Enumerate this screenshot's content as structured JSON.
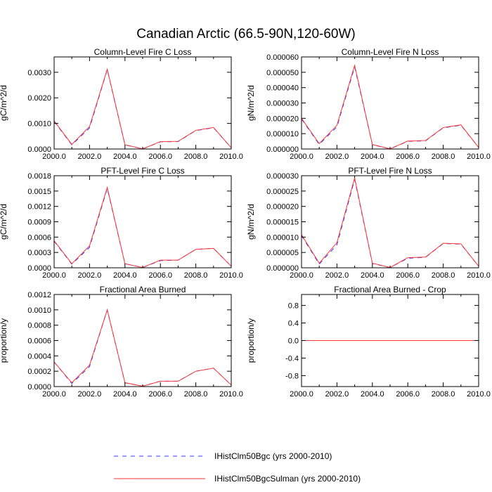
{
  "figure_title": "Canadian Arctic (66.5-90N,120-60W)",
  "colors": {
    "case1": "#3333ff",
    "case2": "#ff3333",
    "axis": "#000000"
  },
  "legend": [
    {
      "label": "IHistClm50Bgc (yrs 2000-2010)",
      "style": "dashed"
    },
    {
      "label": "IHistClm50BgcSulman (yrs 2000-2010)",
      "style": "solid"
    }
  ],
  "chart_data": [
    {
      "type": "line",
      "title": "Column-Level Fire C Loss",
      "ylabel": "gC/m^2/d",
      "xlim": [
        2000,
        2010
      ],
      "ylim": [
        0,
        0.0036
      ],
      "xticks": [
        "2000.0",
        "2002.0",
        "2004.0",
        "2006.0",
        "2008.0",
        "2010.0"
      ],
      "yticks": [
        {
          "value": 0,
          "label": "0.0000"
        },
        {
          "value": 0.001,
          "label": "0.0010"
        },
        {
          "value": 0.002,
          "label": "0.0020"
        },
        {
          "value": 0.003,
          "label": "0.0030"
        }
      ],
      "x": [
        2000,
        2001,
        2002,
        2003,
        2004,
        2005,
        2006,
        2007,
        2008,
        2009,
        2010
      ],
      "series": [
        {
          "name": "IHistClm50Bgc (yrs 2000-2010)",
          "values": [
            0.00108,
            0.00016,
            0.00082,
            0.0031,
            0.00016,
            5e-06,
            0.00028,
            0.00029,
            0.00072,
            0.00083,
            5e-05
          ]
        },
        {
          "name": "IHistClm50BgcSulman (yrs 2000-2010)",
          "values": [
            0.0011,
            0.00018,
            0.00088,
            0.00312,
            0.00017,
            5e-06,
            0.00029,
            0.0003,
            0.00073,
            0.00084,
            5e-05
          ]
        }
      ]
    },
    {
      "type": "line",
      "title": "Column-Level Fire N Loss",
      "ylabel": "gN/m^2/d",
      "xlim": [
        2000,
        2010
      ],
      "ylim": [
        0,
        6e-05
      ],
      "xticks": [
        "2000.0",
        "2002.0",
        "2004.0",
        "2006.0",
        "2008.0",
        "2010.0"
      ],
      "yticks": [
        {
          "value": 0,
          "label": "0.000000"
        },
        {
          "value": 1e-05,
          "label": "0.000010"
        },
        {
          "value": 2e-05,
          "label": "0.000020"
        },
        {
          "value": 3e-05,
          "label": "0.000030"
        },
        {
          "value": 4e-05,
          "label": "0.000040"
        },
        {
          "value": 5e-05,
          "label": "0.000050"
        },
        {
          "value": 6e-05,
          "label": "0.000060"
        }
      ],
      "x": [
        2000,
        2001,
        2002,
        2003,
        2004,
        2005,
        2006,
        2007,
        2008,
        2009,
        2010
      ],
      "series": [
        {
          "name": "IHistClm50Bgc (yrs 2000-2010)",
          "values": [
            1.95e-05,
            3e-06,
            1.45e-05,
            5.35e-05,
            2.8e-06,
            1e-07,
            5e-06,
            5.3e-06,
            1.38e-05,
            1.55e-05,
            1e-06
          ]
        },
        {
          "name": "IHistClm50BgcSulman (yrs 2000-2010)",
          "values": [
            2e-05,
            3.5e-06,
            1.55e-05,
            5.45e-05,
            2.9e-06,
            1e-07,
            5.2e-06,
            5.5e-06,
            1.4e-05,
            1.57e-05,
            1e-06
          ]
        }
      ]
    },
    {
      "type": "line",
      "title": "PFT-Level Fire C Loss",
      "ylabel": "gC/m^2/d",
      "xlim": [
        2000,
        2010
      ],
      "ylim": [
        0,
        0.0018
      ],
      "xticks": [
        "2000.0",
        "2002.0",
        "2004.0",
        "2006.0",
        "2008.0",
        "2010.0"
      ],
      "yticks": [
        {
          "value": 0,
          "label": "0.0000"
        },
        {
          "value": 0.0003,
          "label": "0.0003"
        },
        {
          "value": 0.0006,
          "label": "0.0006"
        },
        {
          "value": 0.0009,
          "label": "0.0009"
        },
        {
          "value": 0.0012,
          "label": "0.0012"
        },
        {
          "value": 0.0015,
          "label": "0.0015"
        },
        {
          "value": 0.0018,
          "label": "0.0018"
        }
      ],
      "x": [
        2000,
        2001,
        2002,
        2003,
        2004,
        2005,
        2006,
        2007,
        2008,
        2009,
        2010
      ],
      "series": [
        {
          "name": "IHistClm50Bgc (yrs 2000-2010)",
          "values": [
            0.00052,
            7e-05,
            0.0004,
            0.00155,
            8e-05,
            5e-06,
            0.00014,
            0.00015,
            0.00036,
            0.00038,
            3e-05
          ]
        },
        {
          "name": "IHistClm50BgcSulman (yrs 2000-2010)",
          "values": [
            0.00053,
            8e-05,
            0.00043,
            0.00157,
            8e-05,
            5e-06,
            0.00015,
            0.00015,
            0.00036,
            0.00038,
            3e-05
          ]
        }
      ]
    },
    {
      "type": "line",
      "title": "PFT-Level Fire N Loss",
      "ylabel": "gN/m^2/d",
      "xlim": [
        2000,
        2010
      ],
      "ylim": [
        0,
        3e-05
      ],
      "xticks": [
        "2000.0",
        "2002.0",
        "2004.0",
        "2006.0",
        "2008.0",
        "2010.0"
      ],
      "yticks": [
        {
          "value": 0,
          "label": "0.000000"
        },
        {
          "value": 5e-06,
          "label": "0.000005"
        },
        {
          "value": 1e-05,
          "label": "0.000010"
        },
        {
          "value": 1.5e-05,
          "label": "0.000015"
        },
        {
          "value": 2e-05,
          "label": "0.000020"
        },
        {
          "value": 2.5e-05,
          "label": "0.000025"
        },
        {
          "value": 3e-05,
          "label": "0.000030"
        }
      ],
      "x": [
        2000,
        2001,
        2002,
        2003,
        2004,
        2005,
        2006,
        2007,
        2008,
        2009,
        2010
      ],
      "series": [
        {
          "name": "IHistClm50Bgc (yrs 2000-2010)",
          "values": [
            1.05e-05,
            1.2e-06,
            7.5e-06,
            2.88e-05,
            1.4e-06,
            1e-07,
            3.1e-06,
            3.4e-06,
            7.9e-06,
            7.7e-06,
            5e-07
          ]
        },
        {
          "name": "IHistClm50BgcSulman (yrs 2000-2010)",
          "values": [
            1.08e-05,
            1.5e-06,
            8.2e-06,
            2.93e-05,
            1.5e-06,
            1e-07,
            3.3e-06,
            3.5e-06,
            8e-06,
            7.8e-06,
            5e-07
          ]
        }
      ]
    },
    {
      "type": "line",
      "title": "Fractional Area Burned",
      "ylabel": "proportion/y",
      "xlim": [
        2000,
        2010
      ],
      "ylim": [
        0,
        0.0012
      ],
      "xticks": [
        "2000.0",
        "2002.0",
        "2004.0",
        "2006.0",
        "2008.0",
        "2010.0"
      ],
      "yticks": [
        {
          "value": 0,
          "label": "0.0000"
        },
        {
          "value": 0.0002,
          "label": "0.0002"
        },
        {
          "value": 0.0004,
          "label": "0.0004"
        },
        {
          "value": 0.0006,
          "label": "0.0006"
        },
        {
          "value": 0.0008,
          "label": "0.0008"
        },
        {
          "value": 0.001,
          "label": "0.0010"
        },
        {
          "value": 0.0012,
          "label": "0.0012"
        }
      ],
      "x": [
        2000,
        2001,
        2002,
        2003,
        2004,
        2005,
        2006,
        2007,
        2008,
        2009,
        2010
      ],
      "series": [
        {
          "name": "IHistClm50Bgc (yrs 2000-2010)",
          "values": [
            0.00032,
            4e-05,
            0.00026,
            0.001,
            5e-05,
            5e-06,
            7e-05,
            7e-05,
            0.0002,
            0.00024,
            2e-05
          ]
        },
        {
          "name": "IHistClm50BgcSulman (yrs 2000-2010)",
          "values": [
            0.00032,
            5e-05,
            0.00028,
            0.001,
            5e-05,
            5e-06,
            7e-05,
            7e-05,
            0.0002,
            0.00024,
            2e-05
          ]
        }
      ]
    },
    {
      "type": "line",
      "title": "Fractional Area Burned - Crop",
      "ylabel": "proportion/y",
      "xlim": [
        2000,
        2010
      ],
      "ylim": [
        -1.05,
        1.05
      ],
      "xticks": [
        "2000.0",
        "2002.0",
        "2004.0",
        "2006.0",
        "2008.0",
        "2010.0"
      ],
      "yticks": [
        {
          "value": -0.8,
          "label": "-0.8"
        },
        {
          "value": -0.4,
          "label": "-0.4"
        },
        {
          "value": 0,
          "label": "0.0"
        },
        {
          "value": 0.4,
          "label": "0.4"
        },
        {
          "value": 0.8,
          "label": "0.8"
        }
      ],
      "x": [
        2000,
        2001,
        2002,
        2003,
        2004,
        2005,
        2006,
        2007,
        2008,
        2009,
        2010
      ],
      "series": [
        {
          "name": "IHistClm50Bgc (yrs 2000-2010)",
          "values": [
            0,
            0,
            0,
            0,
            0,
            0,
            0,
            0,
            0,
            0,
            0
          ]
        },
        {
          "name": "IHistClm50BgcSulman (yrs 2000-2010)",
          "values": [
            0,
            0,
            0,
            0,
            0,
            0,
            0,
            0,
            0,
            0,
            0
          ]
        }
      ]
    }
  ]
}
